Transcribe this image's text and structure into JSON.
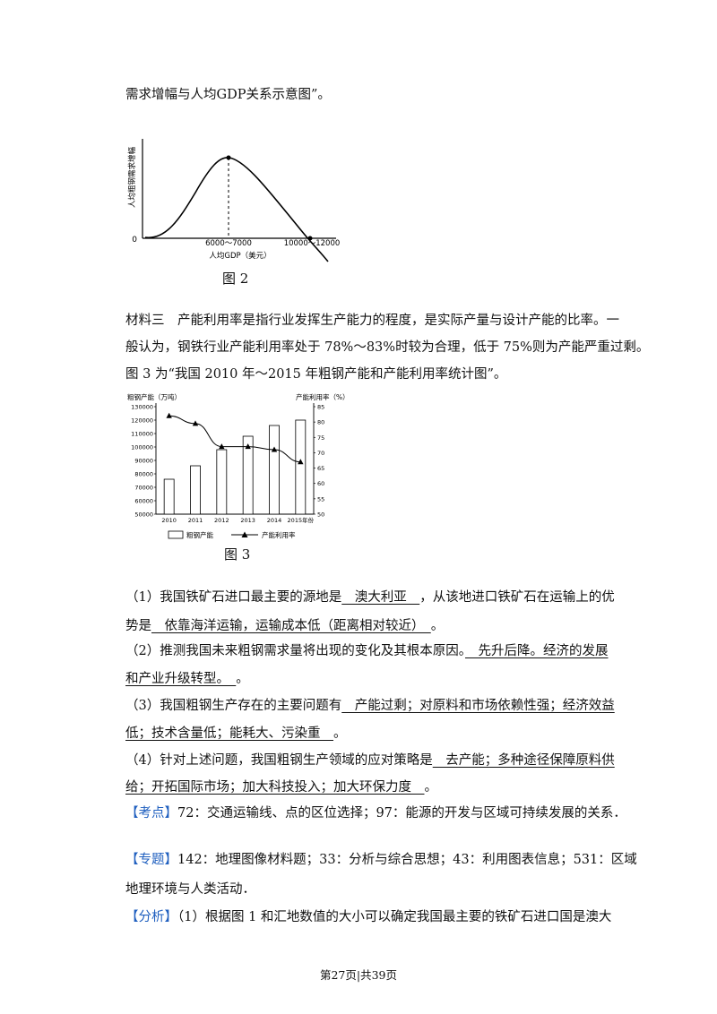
{
  "intro": "需求增幅与人均GDP关系示意图”。",
  "fig2": {
    "ylabel": "人均粗钢需求增幅",
    "y_zero": "0",
    "x_peak": "6000～7000",
    "x_end": "10000～12000",
    "xlabel": "人均GDP（美元）",
    "caption": "图 2"
  },
  "material3": [
    "材料三　产能利用率是指行业发挥生产能力的程度，是实际产量与设计产能的比率。一",
    "般认为，钢铁行业产能利用率处于 78%～83%时较为合理，低于 75%则为产能严重过剩。",
    "图 3 为“我国 2010 年～2015 年粗钢产能和产能利用率统计图”。"
  ],
  "chart_data": {
    "type": "bar",
    "categories": [
      "2010",
      "2011",
      "2012",
      "2013",
      "2014",
      "2015年份"
    ],
    "left_axis_title": "粗钢产能（万吨）",
    "right_axis_title": "产能利用率（%）",
    "left_ticks": [
      "50000",
      "60000",
      "70000",
      "80000",
      "90000",
      "100000",
      "110000",
      "120000",
      "130000"
    ],
    "right_ticks": [
      "50",
      "55",
      "60",
      "65",
      "70",
      "75",
      "80",
      "85"
    ],
    "ylim_left": [
      50000,
      130000
    ],
    "ylim_right": [
      50,
      85
    ],
    "series": [
      {
        "name": "粗钢产能",
        "kind": "bar",
        "values": [
          76000,
          86000,
          98000,
          108000,
          116000,
          120000
        ]
      },
      {
        "name": "产能利用率",
        "kind": "line",
        "values": [
          82,
          79.5,
          72,
          72,
          71,
          67
        ]
      }
    ],
    "legend_placement": "bottom",
    "caption": "图 3"
  },
  "q1": {
    "a": "（1）我国铁矿石进口最主要的源地是",
    "b": "　澳大利亚　",
    "c": "，从该地进口铁矿石在运输上的优",
    "d": "势是",
    "e": "　依靠海洋运输，运输成本低（距离相对较近）　",
    "f": "。"
  },
  "q2": {
    "a": "（2）推测我国未来粗钢需求量将出现的变化及其根本原因。",
    "b": "　先升后降。经济的发展",
    "c": "和产业升级转型。　",
    "d": "。"
  },
  "q3": {
    "a": "（3）我国粗钢生产存在的主要问题有",
    "b": "　产能过剩；对原料和市场依赖性强；经济效益",
    "c": "低；技术含量低；能耗大、污染重　",
    "d": "。"
  },
  "q4": {
    "a": "（4）针对上述问题，我国粗钢生产领域的应对策略是",
    "b": "　去产能；多种途径保障原料供",
    "c": "给；开拓国际市场；加大科技投入；加大环保力度　",
    "d": "。"
  },
  "kaodian": {
    "tag": "【考点】",
    "text": "72：交通运输线、点的区位选择；97：能源的开发与区域可持续发展的关系．"
  },
  "zhuanti": {
    "tag": "【专题】",
    "text": "142：地理图像材料题；33：分析与综合思想；43：利用图表信息；531：区域",
    "text2": "地理环境与人类活动．"
  },
  "fenxi": {
    "tag": "【分析】",
    "text": "（1）根据图 1 和汇地数值的大小可以确定我国最主要的铁矿石进口国是澳大"
  },
  "footer": "第27页|共39页"
}
